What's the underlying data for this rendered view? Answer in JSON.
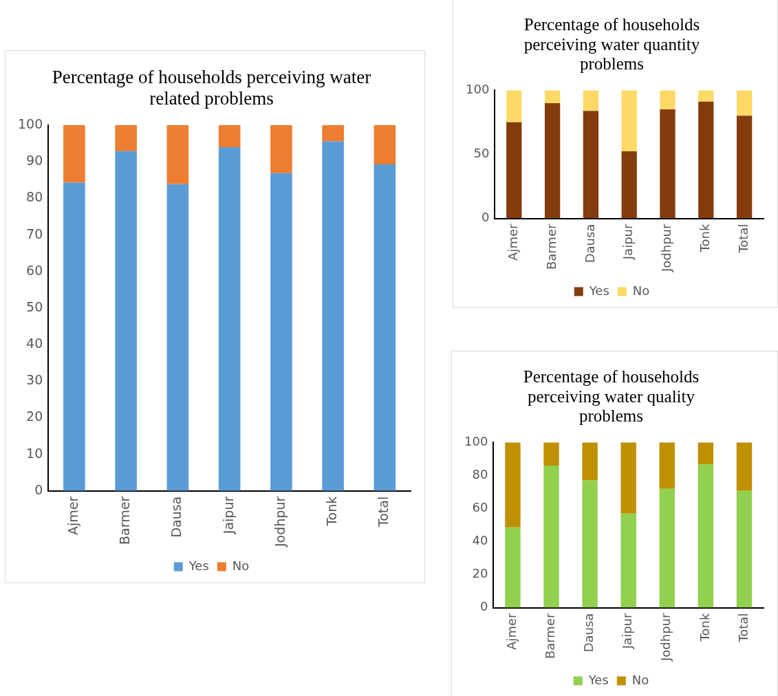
{
  "chart_data": [
    {
      "type": "bar",
      "title": "Percentage of households perceiving water related problems",
      "categories": [
        "Ajmer",
        "Barmer",
        "Dausa",
        "Jaipur",
        "Jodhpur",
        "Tonk",
        "Total"
      ],
      "stacked": true,
      "ylim": [
        0,
        100
      ],
      "yticks": [
        0,
        10,
        20,
        30,
        40,
        50,
        60,
        70,
        80,
        90,
        100
      ],
      "grid": false,
      "legend": "bottom",
      "series": [
        {
          "name": "Yes",
          "color": "#5b9bd5",
          "values": [
            84.3,
            92.9,
            83.9,
            94.0,
            86.9,
            95.6,
            89.3
          ]
        },
        {
          "name": "No",
          "color": "#ed7d31",
          "values": [
            15.7,
            7.1,
            16.1,
            6.0,
            13.1,
            4.4,
            10.7
          ]
        }
      ]
    },
    {
      "type": "bar",
      "title": "Percentage of households perceiving water quantity problems",
      "categories": [
        "Ajmer",
        "Barmer",
        "Dausa",
        "Jaipur",
        "Jodhpur",
        "Tonk",
        "Total"
      ],
      "stacked": true,
      "ylim": [
        0,
        100
      ],
      "yticks": [
        0,
        50,
        100
      ],
      "grid": false,
      "legend": "bottom",
      "series": [
        {
          "name": "Yes",
          "color": "#843c0c",
          "values": [
            75.0,
            90.0,
            83.9,
            52.4,
            85.1,
            91.2,
            80.1
          ]
        },
        {
          "name": "No",
          "color": "#ffd966",
          "values": [
            25.0,
            10.0,
            16.1,
            47.6,
            14.9,
            8.8,
            19.9
          ]
        }
      ]
    },
    {
      "type": "bar",
      "title": "Percentage of households perceiving water quality problems",
      "categories": [
        "Ajmer",
        "Barmer",
        "Dausa",
        "Jaipur",
        "Jodhpur",
        "Tonk",
        "Total"
      ],
      "stacked": true,
      "ylim": [
        0,
        100
      ],
      "yticks": [
        0,
        20,
        40,
        60,
        80,
        100
      ],
      "grid": false,
      "legend": "bottom",
      "series": [
        {
          "name": "Yes",
          "color": "#92d050",
          "values": [
            48.6,
            86.0,
            77.0,
            56.9,
            71.9,
            86.7,
            70.7
          ]
        },
        {
          "name": "No",
          "color": "#bf9000",
          "values": [
            51.4,
            14.0,
            23.0,
            43.1,
            28.1,
            13.3,
            29.3
          ]
        }
      ]
    }
  ]
}
